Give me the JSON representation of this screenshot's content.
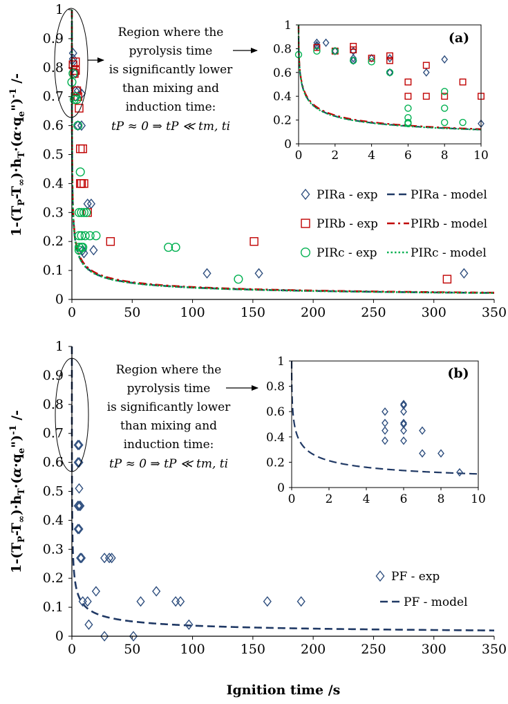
{
  "chart_data": [
    {
      "id": "top-main",
      "type": "scatter",
      "panel_label": "",
      "xlabel": "",
      "ylabel": "1-(TP-T∞)·hT·(α·qe\")-1 /-",
      "xlim": [
        0,
        350
      ],
      "ylim": [
        0,
        1
      ],
      "x_ticks": [
        0,
        50,
        100,
        150,
        200,
        250,
        300,
        350
      ],
      "y_ticks": [
        0,
        0.1,
        0.2,
        0.3,
        0.4,
        0.5,
        0.6,
        0.7,
        0.8,
        0.9,
        1
      ],
      "grid": false,
      "legend": "bottom-right",
      "annotation": [
        "Region where the",
        "pyrolysis time",
        "is significantly lower",
        "than mixing and",
        "induction time:",
        "tP ≈ 0 ⇒ tP ≪ tm, ti"
      ],
      "series": [
        {
          "name": "PIRa - exp",
          "kind": "points",
          "marker": "diamond",
          "color": "#2E4E7E",
          "x": [
            1,
            1,
            1,
            3,
            3,
            3,
            5,
            5,
            8,
            8,
            9,
            10,
            13,
            16,
            18,
            112,
            155,
            325
          ],
          "y": [
            0.85,
            0.83,
            0.82,
            0.78,
            0.72,
            0.7,
            0.72,
            0.6,
            0.71,
            0.6,
            0.17,
            0.16,
            0.33,
            0.33,
            0.17,
            0.09,
            0.09,
            0.09
          ]
        },
        {
          "name": "PIRb - exp",
          "kind": "points",
          "marker": "square",
          "color": "#C00000",
          "x": [
            1,
            2,
            3,
            3,
            4,
            5,
            6,
            7,
            7,
            8,
            9,
            10,
            13,
            32,
            151,
            311
          ],
          "y": [
            0.81,
            0.78,
            0.82,
            0.79,
            0.72,
            0.7,
            0.66,
            0.52,
            0.4,
            0.4,
            0.52,
            0.4,
            0.3,
            0.2,
            0.2,
            0.07
          ]
        },
        {
          "name": "PIRc - exp",
          "kind": "points",
          "marker": "circle",
          "color": "#00B050",
          "x": [
            0,
            1,
            2,
            3,
            4,
            5,
            6,
            6,
            6,
            6,
            7,
            8,
            8,
            8,
            9,
            10,
            11,
            12,
            15,
            20,
            80,
            86,
            138
          ],
          "y": [
            0.75,
            0.78,
            0.69,
            0.7,
            0.69,
            0.6,
            0.3,
            0.22,
            0.18,
            0.17,
            0.44,
            0.3,
            0.22,
            0.18,
            0.18,
            0.3,
            0.22,
            0.3,
            0.22,
            0.22,
            0.18,
            0.18,
            0.07
          ]
        },
        {
          "name": "PIRa - model",
          "kind": "line",
          "style": "dashed",
          "color": "#1F3864",
          "k": 0.185
        },
        {
          "name": "PIRb - model",
          "kind": "line",
          "style": "dashdot",
          "color": "#C00000",
          "k": 0.2
        },
        {
          "name": "PIRc - model",
          "kind": "line",
          "style": "dotted",
          "color": "#00B050",
          "k": 0.18
        }
      ]
    },
    {
      "id": "top-inset",
      "type": "scatter",
      "panel_label": "(a)",
      "xlim": [
        0,
        10
      ],
      "ylim": [
        0,
        1
      ],
      "x_ticks": [
        0,
        2,
        4,
        6,
        8,
        10
      ],
      "y_ticks": [
        0,
        0.2,
        0.4,
        0.6,
        0.8,
        1
      ],
      "series": [
        {
          "name": "PIRa - exp",
          "kind": "points",
          "marker": "diamond",
          "color": "#2E4E7E",
          "x": [
            1,
            1,
            1,
            1.5,
            2,
            3,
            3,
            3,
            4,
            5,
            5,
            7,
            8,
            10
          ],
          "y": [
            0.85,
            0.83,
            0.82,
            0.85,
            0.78,
            0.78,
            0.72,
            0.7,
            0.72,
            0.72,
            0.6,
            0.6,
            0.71,
            0.17
          ]
        },
        {
          "name": "PIRb - exp",
          "kind": "points",
          "marker": "square",
          "color": "#C00000",
          "x": [
            1,
            2,
            3,
            3,
            4,
            5,
            5,
            6,
            6,
            7,
            7,
            8,
            9,
            10
          ],
          "y": [
            0.81,
            0.78,
            0.82,
            0.79,
            0.72,
            0.74,
            0.7,
            0.52,
            0.4,
            0.66,
            0.4,
            0.4,
            0.52,
            0.4
          ],
          "hollow_fill": true
        },
        {
          "name": "PIRc - exp",
          "kind": "points",
          "marker": "circle",
          "color": "#00B050",
          "x": [
            0,
            1,
            2,
            3,
            4,
            5,
            6,
            6,
            6,
            6,
            8,
            8,
            8,
            9
          ],
          "y": [
            0.75,
            0.78,
            0.78,
            0.7,
            0.69,
            0.6,
            0.3,
            0.22,
            0.18,
            0.17,
            0.44,
            0.3,
            0.18,
            0.18
          ]
        },
        {
          "name": "PIRa - model",
          "kind": "line",
          "style": "dashed",
          "color": "#1F3864",
          "k": 0.185
        },
        {
          "name": "PIRb - model",
          "kind": "line",
          "style": "dashdot",
          "color": "#C00000",
          "k": 0.2
        },
        {
          "name": "PIRc - model",
          "kind": "line",
          "style": "dotted",
          "color": "#00B050",
          "k": 0.18
        }
      ]
    },
    {
      "id": "bottom-main",
      "type": "scatter",
      "panel_label": "",
      "xlabel": "Ignition time /s",
      "ylabel": "1-(TP-T∞)·hT·(α·qe\")-1 /-",
      "xlim": [
        0,
        350
      ],
      "ylim": [
        0,
        1
      ],
      "x_ticks": [
        0,
        50,
        100,
        150,
        200,
        250,
        300,
        350
      ],
      "y_ticks": [
        0,
        0.1,
        0.2,
        0.3,
        0.4,
        0.5,
        0.6,
        0.7,
        0.8,
        0.9,
        1
      ],
      "grid": false,
      "legend": "bottom-right",
      "annotation": [
        "Region where the",
        "pyrolysis time",
        "is significantly lower",
        "than mixing and",
        "induction time:",
        "tP ≈ 0 ⇒ tP ≪ tm, ti"
      ],
      "series": [
        {
          "name": "PF - exp",
          "kind": "points",
          "marker": "diamond",
          "color": "#2E4E7E",
          "x": [
            5,
            5,
            5,
            5,
            6,
            6,
            6,
            6,
            6,
            7,
            7,
            8,
            9,
            13,
            14,
            20,
            27,
            27,
            31,
            33,
            51,
            57,
            70,
            86,
            90,
            97,
            162,
            190
          ],
          "y": [
            0.66,
            0.6,
            0.45,
            0.37,
            0.66,
            0.6,
            0.51,
            0.45,
            0.37,
            0.45,
            0.27,
            0.27,
            0.12,
            0.12,
            0.04,
            0.155,
            0.27,
            0.0,
            0.27,
            0.27,
            0.0,
            0.12,
            0.155,
            0.12,
            0.12,
            0.04,
            0.12,
            0.12
          ]
        },
        {
          "name": "PF - model",
          "kind": "line",
          "style": "dashed",
          "color": "#1F3864",
          "k": 0.145
        }
      ]
    },
    {
      "id": "bottom-inset",
      "type": "scatter",
      "panel_label": "(b)",
      "xlim": [
        0,
        10
      ],
      "ylim": [
        0,
        1
      ],
      "x_ticks": [
        0,
        2,
        4,
        6,
        8,
        10
      ],
      "y_ticks": [
        0,
        0.2,
        0.4,
        0.6,
        0.8,
        1
      ],
      "series": [
        {
          "name": "PF - exp",
          "kind": "points",
          "marker": "diamond",
          "color": "#2E4E7E",
          "x": [
            5,
            5,
            5,
            5,
            6,
            6,
            6,
            6,
            6,
            6,
            6,
            7,
            7,
            8,
            9
          ],
          "y": [
            0.6,
            0.51,
            0.45,
            0.37,
            0.66,
            0.65,
            0.6,
            0.51,
            0.5,
            0.45,
            0.37,
            0.45,
            0.27,
            0.27,
            0.12
          ]
        },
        {
          "name": "PF - model",
          "kind": "line",
          "style": "dashed",
          "color": "#1F3864",
          "k": 0.145
        }
      ]
    }
  ]
}
